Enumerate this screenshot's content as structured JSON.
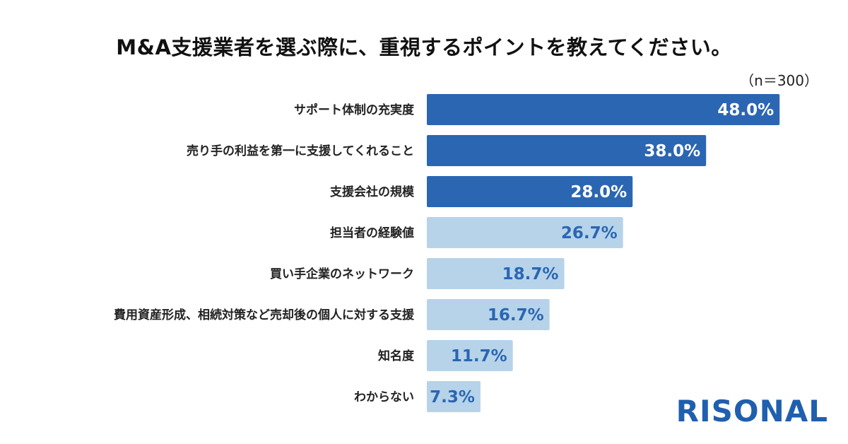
{
  "title": "M&A支援業者を選ぶ際に、重視するポイントを教えてください。",
  "sample_size": "（n＝300）",
  "logo_text": "RISONAL",
  "colors": {
    "top_bar": "#2b66b3",
    "other_bar": "#b6d3ea",
    "top_label": "#ffffff",
    "other_label": "#2b66b3"
  },
  "chart_data": {
    "type": "bar",
    "orientation": "horizontal",
    "categories": [
      "サポート体制の充実度",
      "売り手の利益を第一に支援してくれること",
      "支援会社の規模",
      "担当者の経験値",
      "買い手企業のネットワーク",
      "費用資産形成、相続対策など売却後の個人に対する支援",
      "知名度",
      "わからない"
    ],
    "values": [
      48.0,
      38.0,
      28.0,
      26.7,
      18.7,
      16.7,
      11.7,
      7.3
    ],
    "value_labels": [
      "48.0%",
      "38.0%",
      "28.0%",
      "26.7%",
      "18.7%",
      "16.7%",
      "11.7%",
      "7.3%"
    ],
    "highlight_top": 3,
    "xlim": [
      0,
      50
    ],
    "grid": false,
    "legend": "none"
  }
}
